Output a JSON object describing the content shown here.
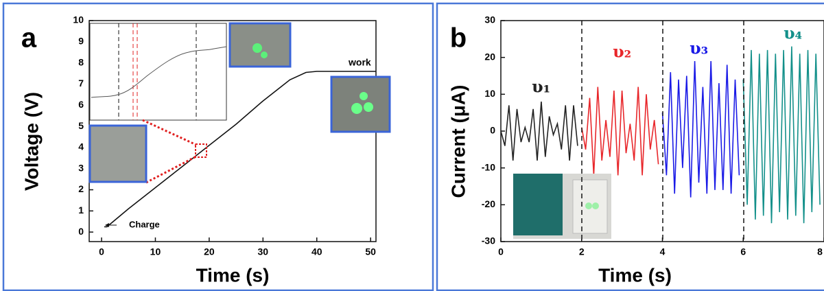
{
  "chart_data": [
    {
      "type": "line",
      "annotations": [
        "a",
        "Charge",
        "work"
      ],
      "x_label": "Time (s)",
      "y_label": "Voltage (V)",
      "x": [
        0.5,
        1,
        5,
        10,
        15,
        20,
        25,
        30,
        35,
        38,
        40,
        45,
        51
      ],
      "values": [
        0.25,
        0.25,
        1.1,
        2.1,
        3.1,
        4.1,
        5.1,
        6.2,
        7.2,
        7.55,
        7.6,
        7.6,
        7.6
      ],
      "color": "#111111",
      "xlim": [
        -2.3,
        51
      ],
      "xticks": [
        0,
        10,
        20,
        30,
        40,
        50
      ],
      "ylim": [
        -0.45,
        10
      ],
      "yticks": [
        0,
        1,
        2,
        3,
        4,
        5,
        6,
        7,
        8,
        9,
        10
      ]
    },
    {
      "type": "line",
      "annotations": [
        "b"
      ],
      "x_label": "Time (s)",
      "y_label": "Current (μA)",
      "series": [
        {
          "name": "υ₁",
          "color": "#222222",
          "x": [
            0,
            0.1,
            0.2,
            0.3,
            0.4,
            0.5,
            0.6,
            0.7,
            0.8,
            0.9,
            1.0,
            1.1,
            1.2,
            1.3,
            1.4,
            1.5,
            1.6,
            1.7,
            1.8,
            1.9
          ],
          "values": [
            0,
            -4,
            7,
            -8,
            6,
            -3,
            1,
            -3,
            6,
            -8,
            8,
            -7,
            4,
            -1,
            2,
            -5,
            7,
            -8,
            7,
            -4
          ]
        },
        {
          "name": "υ₂",
          "color": "#e8262a",
          "x": [
            2.0,
            2.1,
            2.2,
            2.3,
            2.4,
            2.5,
            2.6,
            2.7,
            2.8,
            2.9,
            3.0,
            3.1,
            3.2,
            3.3,
            3.4,
            3.5,
            3.6,
            3.7,
            3.8,
            3.9
          ],
          "values": [
            1,
            -5,
            9,
            -12,
            12,
            -8,
            3,
            -7,
            11,
            -12,
            11,
            -6,
            2,
            -8,
            12,
            -12,
            10,
            -5,
            3,
            -9
          ]
        },
        {
          "name": "υ₃",
          "color": "#1a1ae6",
          "x": [
            4.0,
            4.1,
            4.2,
            4.3,
            4.4,
            4.5,
            4.6,
            4.7,
            4.8,
            4.9,
            5.0,
            5.1,
            5.2,
            5.3,
            5.4,
            5.5,
            5.6,
            5.7,
            5.8,
            5.9
          ],
          "values": [
            5,
            -12,
            16,
            -17,
            14,
            -10,
            15,
            -18,
            19,
            -14,
            12,
            -17,
            19,
            -16,
            13,
            -16,
            18,
            -17,
            14,
            -12
          ]
        },
        {
          "name": "υ₄",
          "color": "#13908a",
          "x": [
            6.0,
            6.1,
            6.2,
            6.3,
            6.4,
            6.5,
            6.6,
            6.7,
            6.8,
            6.9,
            7.0,
            7.1,
            7.2,
            7.3,
            7.4,
            7.5,
            7.6,
            7.7,
            7.8,
            7.9
          ],
          "values": [
            14,
            -20,
            22,
            -24,
            21,
            -23,
            22,
            -25,
            21,
            -22,
            22,
            -24,
            23,
            -23,
            21,
            -25,
            22,
            -22,
            21,
            -20
          ]
        }
      ],
      "xlim": [
        0,
        8
      ],
      "xticks": [
        0,
        2,
        4,
        6,
        8
      ],
      "ylim": [
        -30,
        30
      ],
      "yticks": [
        -30,
        -20,
        -10,
        0,
        10,
        20,
        30
      ]
    }
  ]
}
